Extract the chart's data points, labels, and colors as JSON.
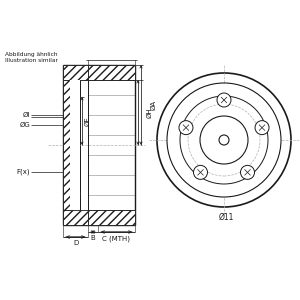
{
  "bg_color": "#ffffff",
  "line_color": "#1a1a1a",
  "dash_color": "#b0b0b0",
  "text_color": "#1a1a1a",
  "note_text": [
    "Abbildung ähnlich",
    "Illustration similar"
  ],
  "label_A": "ØA",
  "label_H": "ØH",
  "label_E": "ØE",
  "label_G": "ØG",
  "label_I": "ØI",
  "label_F": "F(x)",
  "label_B": "B",
  "label_C": "C (MTH)",
  "label_D": "D",
  "label_11": "Ø11",
  "fig_width": 3.0,
  "fig_height": 3.0,
  "dpi": 100
}
